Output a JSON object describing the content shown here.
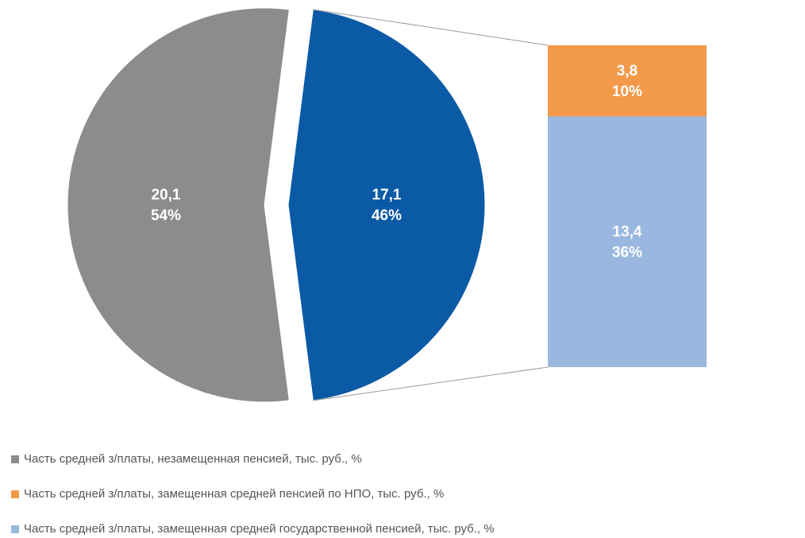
{
  "chart_data": {
    "type": "pie",
    "pie": {
      "categories": [
        "Часть средней з/платы,  незамещенная пенсией,  тыс. руб., %",
        null
      ],
      "values": [
        20.1,
        17.1
      ],
      "value_labels": [
        "20,1",
        "17,1"
      ],
      "percents": [
        54,
        46
      ],
      "percent_labels": [
        "54%",
        "46%"
      ],
      "colors": [
        "#8c8c8c",
        "#0b5aa6"
      ]
    },
    "bar": {
      "categories": [
        "Часть средней з/платы,  замещенная средней пенсией по НПО, тыс. руб., %",
        "Часть средней з/платы,  замещенная  средней государственной пенсией, тыс. руб., %"
      ],
      "values": [
        3.8,
        13.4
      ],
      "value_labels": [
        "3,8",
        "13,4"
      ],
      "percents": [
        10,
        36
      ],
      "percent_labels": [
        "10%",
        "36%"
      ],
      "colors": [
        "#f39a4a",
        "#9ab8df"
      ]
    }
  }
}
